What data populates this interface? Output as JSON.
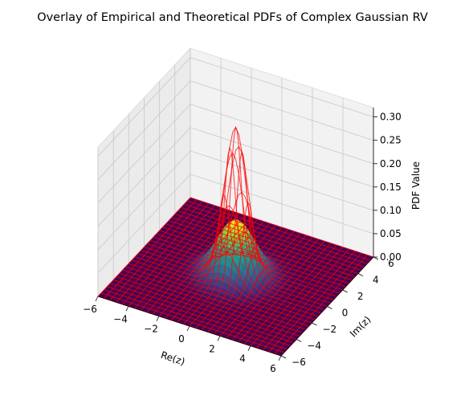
{
  "chart_data": {
    "type": "surface3d",
    "title": "Overlay of Empirical and Theoretical PDFs of Complex Gaussian RV",
    "xlabel": "Re(z)",
    "ylabel": "Im(z)",
    "zlabel": "PDF Value",
    "xlim": [
      -6,
      6
    ],
    "ylim": [
      -6,
      6
    ],
    "zlim": [
      0,
      0.32
    ],
    "xticks": [
      "−6",
      "−4",
      "−2",
      "0",
      "2",
      "4",
      "6"
    ],
    "yticks": [
      "−6",
      "−4",
      "−2",
      "0",
      "2",
      "4",
      "6"
    ],
    "zticks": [
      "0.00",
      "0.05",
      "0.10",
      "0.15",
      "0.20",
      "0.25",
      "0.30"
    ],
    "grid": true,
    "series": [
      {
        "style": "filled surface",
        "colormap": "viridis",
        "peak": 0.12,
        "center": [
          0,
          0
        ],
        "sigma": 1.15
      },
      {
        "style": "wireframe",
        "color": "#ff0000",
        "peak": 0.32,
        "center": [
          0,
          0
        ],
        "sigma": 0.7
      }
    ]
  }
}
